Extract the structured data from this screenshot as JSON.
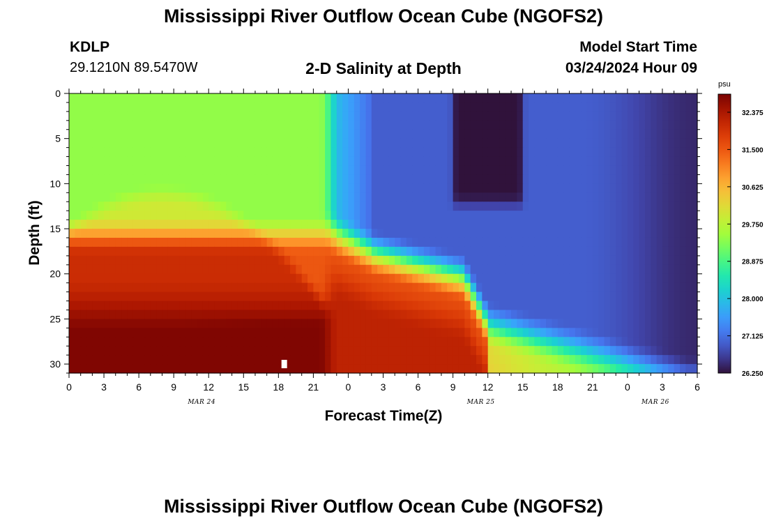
{
  "header": {
    "title": "Mississippi River Outflow Ocean Cube (NGOFS2)",
    "station_id": "KDLP",
    "station_coords": "29.1210N  89.5470W",
    "subtitle": "2-D Salinity at Depth",
    "model_start_label": "Model Start Time",
    "model_start_value": "03/24/2024 Hour 09"
  },
  "footer": {
    "title": "Mississippi River Outflow Ocean Cube (NGOFS2)"
  },
  "chart_data": {
    "type": "heatmap",
    "title": "2-D Salinity at Depth",
    "xlabel": "Forecast Time(Z)",
    "ylabel": "Depth (ft)",
    "x_range_hours": [
      0,
      54
    ],
    "x_ticks": [
      {
        "h": 0,
        "label": "0"
      },
      {
        "h": 3,
        "label": "3"
      },
      {
        "h": 6,
        "label": "6"
      },
      {
        "h": 9,
        "label": "9"
      },
      {
        "h": 12,
        "label": "12"
      },
      {
        "h": 15,
        "label": "15"
      },
      {
        "h": 18,
        "label": "18"
      },
      {
        "h": 21,
        "label": "21"
      },
      {
        "h": 24,
        "label": "0"
      },
      {
        "h": 27,
        "label": "3"
      },
      {
        "h": 30,
        "label": "6"
      },
      {
        "h": 33,
        "label": "9"
      },
      {
        "h": 36,
        "label": "12"
      },
      {
        "h": 39,
        "label": "15"
      },
      {
        "h": 42,
        "label": "18"
      },
      {
        "h": 45,
        "label": "21"
      },
      {
        "h": 48,
        "label": "0"
      },
      {
        "h": 51,
        "label": "3"
      },
      {
        "h": 54,
        "label": "6"
      }
    ],
    "date_labels": [
      {
        "h": 12,
        "label": "MAR 24"
      },
      {
        "h": 36,
        "label": "MAR 25"
      },
      {
        "h": 51,
        "label": "MAR 26"
      }
    ],
    "y_range": [
      0,
      31
    ],
    "y_ticks": [
      0,
      5,
      10,
      15,
      20,
      25,
      30
    ],
    "colorbar": {
      "unit": "psu",
      "min": 26.25,
      "max": 32.8,
      "tick_values": [
        32.375,
        31.5,
        30.625,
        29.75,
        28.875,
        28.0,
        27.125,
        26.25
      ],
      "tick_labels": [
        "32.375",
        "31.500",
        "30.625",
        "29.750",
        "28.875",
        "28.000",
        "27.125",
        "26.250"
      ]
    },
    "marker": {
      "h": 18.5,
      "depth": 30
    }
  }
}
